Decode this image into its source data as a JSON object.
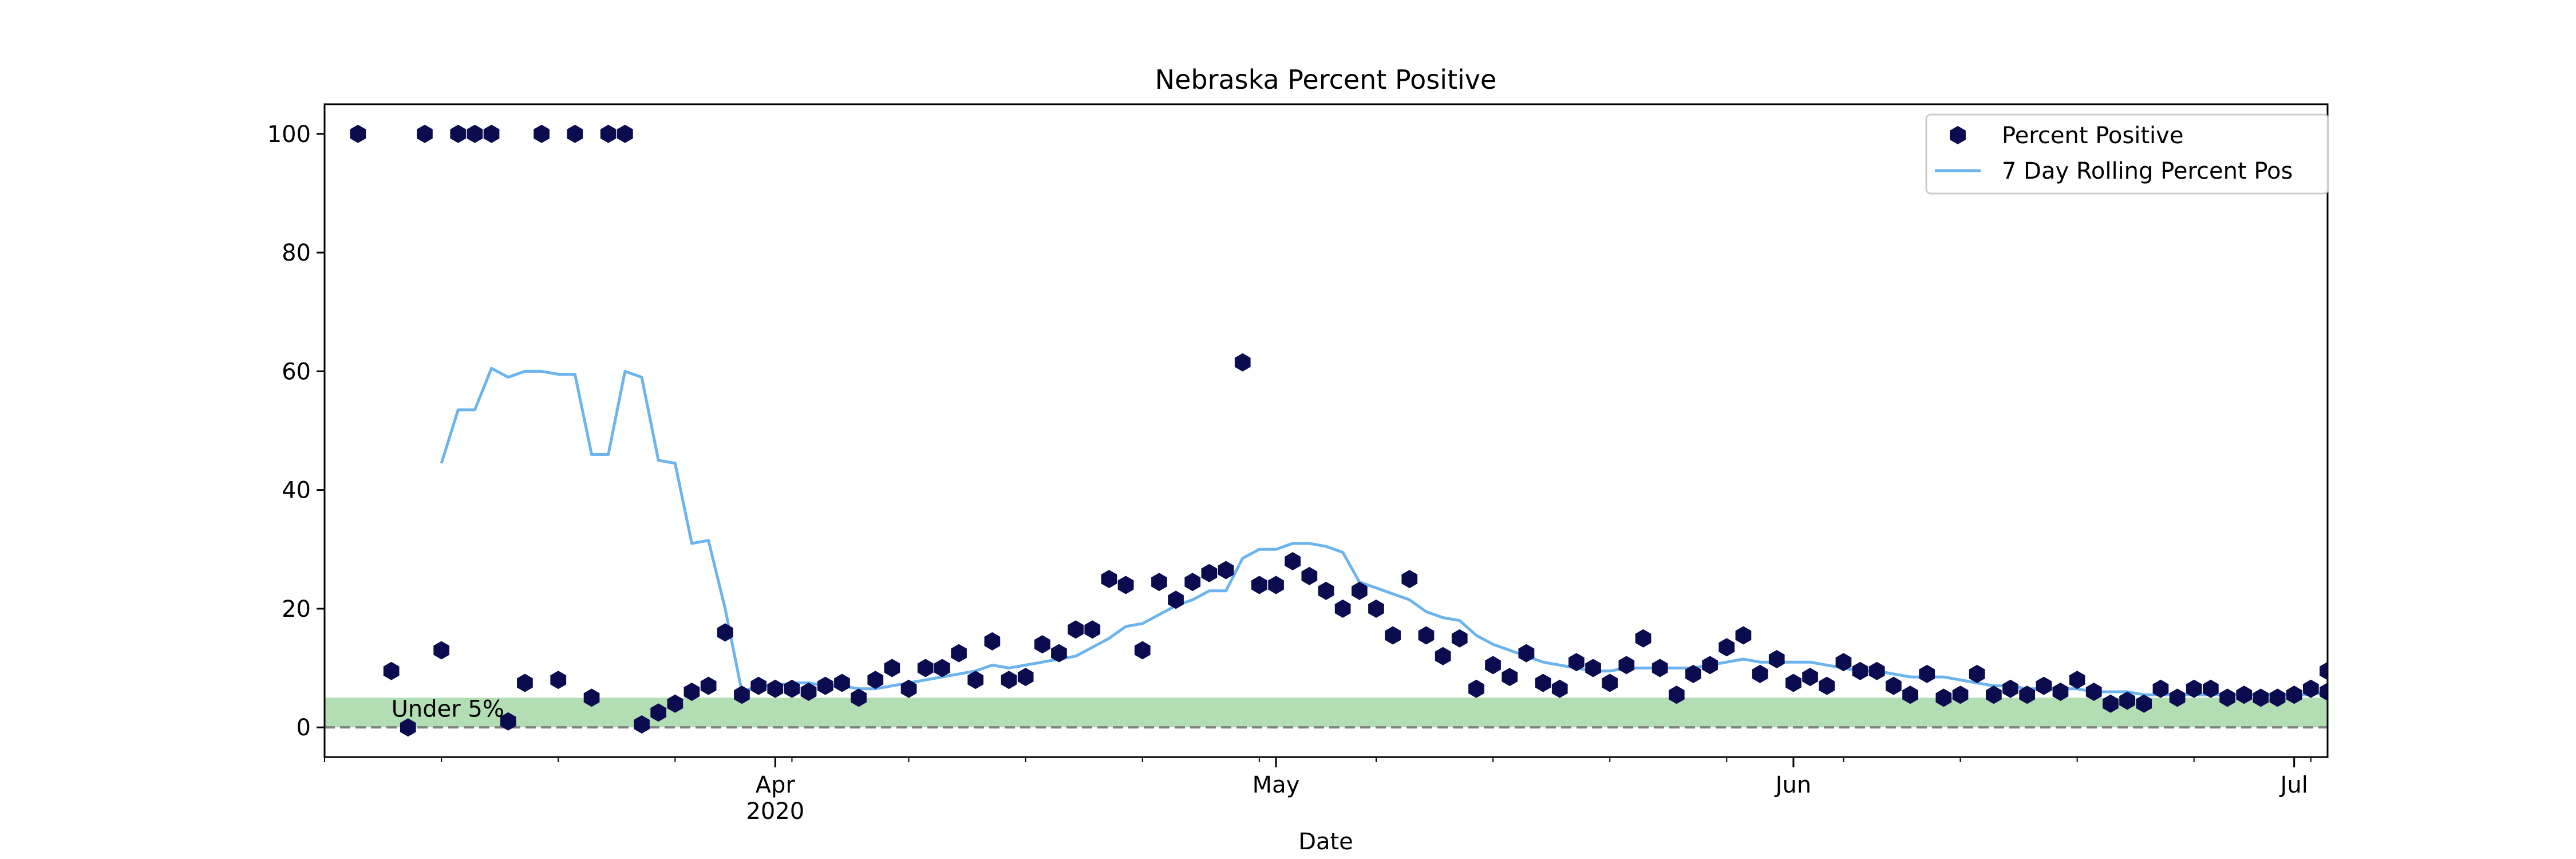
{
  "chart_data": {
    "type": "scatter",
    "title": "Nebraska Percent Positive",
    "xlabel": "Date",
    "ylabel": "",
    "xlim": [
      "2020-03-05",
      "2020-07-03"
    ],
    "ylim": [
      -5,
      105
    ],
    "x_ticks": [
      {
        "date": "2020-04-01",
        "label": "Apr",
        "sublabel": "2020"
      },
      {
        "date": "2020-05-01",
        "label": "May",
        "sublabel": ""
      },
      {
        "date": "2020-06-01",
        "label": "Jun",
        "sublabel": ""
      },
      {
        "date": "2020-07-01",
        "label": "Jul",
        "sublabel": ""
      }
    ],
    "y_ticks": [
      0,
      20,
      40,
      60,
      80,
      100
    ],
    "grid": false,
    "legend_position": "top-right",
    "threshold_band": {
      "from": 0,
      "to": 5,
      "label": "Under 5%",
      "color": "#2ca02c"
    },
    "zero_line": {
      "value": 0,
      "style": "dashed",
      "color": "#808080"
    },
    "series": [
      {
        "name": "Percent Positive",
        "kind": "scatter",
        "marker": "hexagon",
        "color": "#0b0b4f",
        "points": [
          [
            "2020-03-07",
            100
          ],
          [
            "2020-03-09",
            9.5
          ],
          [
            "2020-03-10",
            0
          ],
          [
            "2020-03-11",
            100
          ],
          [
            "2020-03-12",
            13
          ],
          [
            "2020-03-13",
            100
          ],
          [
            "2020-03-14",
            100
          ],
          [
            "2020-03-15",
            100
          ],
          [
            "2020-03-16",
            1
          ],
          [
            "2020-03-17",
            7.5
          ],
          [
            "2020-03-18",
            100
          ],
          [
            "2020-03-19",
            8
          ],
          [
            "2020-03-20",
            100
          ],
          [
            "2020-03-21",
            5
          ],
          [
            "2020-03-22",
            100
          ],
          [
            "2020-03-23",
            100
          ],
          [
            "2020-03-24",
            0.5
          ],
          [
            "2020-03-25",
            2.5
          ],
          [
            "2020-03-26",
            4
          ],
          [
            "2020-03-27",
            6
          ],
          [
            "2020-03-28",
            7
          ],
          [
            "2020-03-29",
            16
          ],
          [
            "2020-03-30",
            5.5
          ],
          [
            "2020-03-31",
            7
          ],
          [
            "2020-04-01",
            6.5
          ],
          [
            "2020-04-02",
            6.5
          ],
          [
            "2020-04-03",
            6
          ],
          [
            "2020-04-04",
            7
          ],
          [
            "2020-04-05",
            7.5
          ],
          [
            "2020-04-06",
            5
          ],
          [
            "2020-04-07",
            8
          ],
          [
            "2020-04-08",
            10
          ],
          [
            "2020-04-09",
            6.5
          ],
          [
            "2020-04-10",
            10
          ],
          [
            "2020-04-11",
            10
          ],
          [
            "2020-04-12",
            12.5
          ],
          [
            "2020-04-13",
            8
          ],
          [
            "2020-04-14",
            14.5
          ],
          [
            "2020-04-15",
            8
          ],
          [
            "2020-04-16",
            8.5
          ],
          [
            "2020-04-17",
            14
          ],
          [
            "2020-04-18",
            12.5
          ],
          [
            "2020-04-19",
            16.5
          ],
          [
            "2020-04-20",
            16.5
          ],
          [
            "2020-04-21",
            25
          ],
          [
            "2020-04-22",
            24
          ],
          [
            "2020-04-23",
            13
          ],
          [
            "2020-04-24",
            24.5
          ],
          [
            "2020-04-25",
            21.5
          ],
          [
            "2020-04-26",
            24.5
          ],
          [
            "2020-04-27",
            26
          ],
          [
            "2020-04-28",
            26.5
          ],
          [
            "2020-04-29",
            61.5
          ],
          [
            "2020-04-30",
            24
          ],
          [
            "2020-05-01",
            24
          ],
          [
            "2020-05-02",
            28
          ],
          [
            "2020-05-03",
            25.5
          ],
          [
            "2020-05-04",
            23
          ],
          [
            "2020-05-05",
            20
          ],
          [
            "2020-05-06",
            23
          ],
          [
            "2020-05-07",
            20
          ],
          [
            "2020-05-08",
            15.5
          ],
          [
            "2020-05-09",
            25
          ],
          [
            "2020-05-10",
            15.5
          ],
          [
            "2020-05-11",
            12
          ],
          [
            "2020-05-12",
            15
          ],
          [
            "2020-05-13",
            6.5
          ],
          [
            "2020-05-14",
            10.5
          ],
          [
            "2020-05-15",
            8.5
          ],
          [
            "2020-05-16",
            12.5
          ],
          [
            "2020-05-17",
            7.5
          ],
          [
            "2020-05-18",
            6.5
          ],
          [
            "2020-05-19",
            11
          ],
          [
            "2020-05-20",
            10
          ],
          [
            "2020-05-21",
            7.5
          ],
          [
            "2020-05-22",
            10.5
          ],
          [
            "2020-05-23",
            15
          ],
          [
            "2020-05-24",
            10
          ],
          [
            "2020-05-25",
            5.5
          ],
          [
            "2020-05-26",
            9
          ],
          [
            "2020-05-27",
            10.5
          ],
          [
            "2020-05-28",
            13.5
          ],
          [
            "2020-05-29",
            15.5
          ],
          [
            "2020-05-30",
            9
          ],
          [
            "2020-05-31",
            11.5
          ],
          [
            "2020-06-01",
            7.5
          ],
          [
            "2020-06-02",
            8.5
          ],
          [
            "2020-06-03",
            7
          ],
          [
            "2020-06-04",
            11
          ],
          [
            "2020-06-05",
            9.5
          ],
          [
            "2020-06-06",
            9.5
          ],
          [
            "2020-06-07",
            7
          ],
          [
            "2020-06-08",
            5.5
          ],
          [
            "2020-06-09",
            9
          ],
          [
            "2020-06-10",
            5
          ],
          [
            "2020-06-11",
            5.5
          ],
          [
            "2020-06-12",
            9
          ],
          [
            "2020-06-13",
            5.5
          ],
          [
            "2020-06-14",
            6.5
          ],
          [
            "2020-06-15",
            5.5
          ],
          [
            "2020-06-16",
            7
          ],
          [
            "2020-06-17",
            6
          ],
          [
            "2020-06-18",
            8
          ],
          [
            "2020-06-19",
            6
          ],
          [
            "2020-06-20",
            4
          ],
          [
            "2020-06-21",
            4.5
          ],
          [
            "2020-06-22",
            4
          ],
          [
            "2020-06-23",
            6.5
          ],
          [
            "2020-06-24",
            5
          ],
          [
            "2020-06-25",
            6.5
          ],
          [
            "2020-06-26",
            6.5
          ],
          [
            "2020-06-27",
            5
          ],
          [
            "2020-06-28",
            5.5
          ],
          [
            "2020-06-29",
            5
          ],
          [
            "2020-06-30",
            5
          ],
          [
            "2020-07-01",
            5.5
          ],
          [
            "2020-07-02",
            6.5
          ],
          [
            "2020-07-03",
            9.5
          ],
          [
            "2020-07-03",
            6
          ]
        ]
      },
      {
        "name": "7 Day Rolling Percent Pos",
        "kind": "line",
        "color": "#6cb4ee",
        "points": [
          [
            "2020-03-12",
            44.5
          ],
          [
            "2020-03-13",
            53.5
          ],
          [
            "2020-03-14",
            53.5
          ],
          [
            "2020-03-15",
            60.5
          ],
          [
            "2020-03-16",
            59
          ],
          [
            "2020-03-17",
            60
          ],
          [
            "2020-03-18",
            60
          ],
          [
            "2020-03-19",
            59.5
          ],
          [
            "2020-03-20",
            59.5
          ],
          [
            "2020-03-21",
            46
          ],
          [
            "2020-03-22",
            46
          ],
          [
            "2020-03-23",
            60
          ],
          [
            "2020-03-24",
            59
          ],
          [
            "2020-03-25",
            45
          ],
          [
            "2020-03-26",
            44.5
          ],
          [
            "2020-03-27",
            31
          ],
          [
            "2020-03-28",
            31.5
          ],
          [
            "2020-03-29",
            20
          ],
          [
            "2020-03-30",
            6
          ],
          [
            "2020-03-31",
            7
          ],
          [
            "2020-04-01",
            7
          ],
          [
            "2020-04-02",
            7.5
          ],
          [
            "2020-04-03",
            7.5
          ],
          [
            "2020-04-04",
            7
          ],
          [
            "2020-04-05",
            7
          ],
          [
            "2020-04-06",
            6.5
          ],
          [
            "2020-04-07",
            6.5
          ],
          [
            "2020-04-08",
            7
          ],
          [
            "2020-04-09",
            7.5
          ],
          [
            "2020-04-10",
            8
          ],
          [
            "2020-04-11",
            8.5
          ],
          [
            "2020-04-12",
            9
          ],
          [
            "2020-04-13",
            9.5
          ],
          [
            "2020-04-14",
            10.5
          ],
          [
            "2020-04-15",
            10
          ],
          [
            "2020-04-16",
            10.5
          ],
          [
            "2020-04-17",
            11
          ],
          [
            "2020-04-18",
            11.5
          ],
          [
            "2020-04-19",
            12
          ],
          [
            "2020-04-20",
            13.5
          ],
          [
            "2020-04-21",
            15
          ],
          [
            "2020-04-22",
            17
          ],
          [
            "2020-04-23",
            17.5
          ],
          [
            "2020-04-24",
            19
          ],
          [
            "2020-04-25",
            20.5
          ],
          [
            "2020-04-26",
            21.5
          ],
          [
            "2020-04-27",
            23
          ],
          [
            "2020-04-28",
            23
          ],
          [
            "2020-04-29",
            28.5
          ],
          [
            "2020-04-30",
            30
          ],
          [
            "2020-05-01",
            30
          ],
          [
            "2020-05-02",
            31
          ],
          [
            "2020-05-03",
            31
          ],
          [
            "2020-05-04",
            30.5
          ],
          [
            "2020-05-05",
            29.5
          ],
          [
            "2020-05-06",
            24.5
          ],
          [
            "2020-05-07",
            23.5
          ],
          [
            "2020-05-08",
            22.5
          ],
          [
            "2020-05-09",
            21.5
          ],
          [
            "2020-05-10",
            19.5
          ],
          [
            "2020-05-11",
            18.5
          ],
          [
            "2020-05-12",
            18
          ],
          [
            "2020-05-13",
            15.5
          ],
          [
            "2020-05-14",
            14
          ],
          [
            "2020-05-15",
            13
          ],
          [
            "2020-05-16",
            12
          ],
          [
            "2020-05-17",
            11
          ],
          [
            "2020-05-18",
            10.5
          ],
          [
            "2020-05-19",
            10
          ],
          [
            "2020-05-20",
            9.5
          ],
          [
            "2020-05-21",
            9.5
          ],
          [
            "2020-05-22",
            10
          ],
          [
            "2020-05-23",
            10
          ],
          [
            "2020-05-24",
            10
          ],
          [
            "2020-05-25",
            10
          ],
          [
            "2020-05-26",
            10
          ],
          [
            "2020-05-27",
            10.5
          ],
          [
            "2020-05-28",
            11
          ],
          [
            "2020-05-29",
            11.5
          ],
          [
            "2020-05-30",
            11
          ],
          [
            "2020-05-31",
            11
          ],
          [
            "2020-06-01",
            11
          ],
          [
            "2020-06-02",
            11
          ],
          [
            "2020-06-03",
            10.5
          ],
          [
            "2020-06-04",
            10
          ],
          [
            "2020-06-05",
            9.5
          ],
          [
            "2020-06-06",
            9.5
          ],
          [
            "2020-06-07",
            9
          ],
          [
            "2020-06-08",
            8.5
          ],
          [
            "2020-06-09",
            8.5
          ],
          [
            "2020-06-10",
            8.5
          ],
          [
            "2020-06-11",
            8
          ],
          [
            "2020-06-12",
            7.5
          ],
          [
            "2020-06-13",
            7
          ],
          [
            "2020-06-14",
            7
          ],
          [
            "2020-06-15",
            6.5
          ],
          [
            "2020-06-16",
            6.5
          ],
          [
            "2020-06-17",
            6.5
          ],
          [
            "2020-06-18",
            6.5
          ],
          [
            "2020-06-19",
            6
          ],
          [
            "2020-06-20",
            6
          ],
          [
            "2020-06-21",
            6
          ],
          [
            "2020-06-22",
            5.5
          ],
          [
            "2020-06-23",
            5.5
          ],
          [
            "2020-06-24",
            5.5
          ],
          [
            "2020-06-25",
            5.5
          ],
          [
            "2020-06-26",
            5.5
          ],
          [
            "2020-06-27",
            5.5
          ],
          [
            "2020-06-28",
            5.5
          ],
          [
            "2020-06-29",
            5.5
          ],
          [
            "2020-06-30",
            5.5
          ],
          [
            "2020-07-01",
            5.5
          ],
          [
            "2020-07-02",
            5.5
          ],
          [
            "2020-07-03",
            6
          ]
        ]
      }
    ]
  }
}
